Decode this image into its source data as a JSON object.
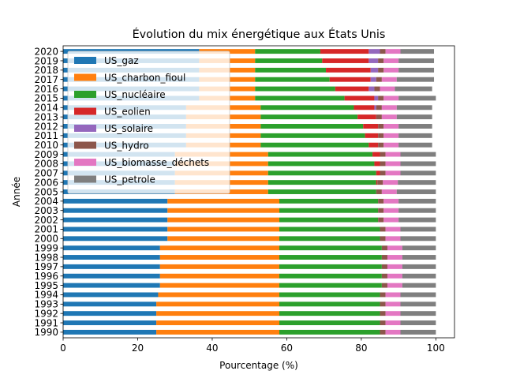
{
  "chart_data": {
    "type": "bar",
    "orientation": "horizontal",
    "stacked": true,
    "title": "Évolution du mix énergétique aux États Unis",
    "xlabel": "Pourcentage (%)",
    "ylabel": "Année",
    "xlim": [
      0,
      105
    ],
    "xticks": [
      0,
      20,
      40,
      60,
      80,
      100
    ],
    "legend_position": "upper-left",
    "grid": false,
    "categories": [
      "1990",
      "1991",
      "1992",
      "1993",
      "1994",
      "1995",
      "1996",
      "1997",
      "1998",
      "1999",
      "2000",
      "2001",
      "2002",
      "2003",
      "2004",
      "2005",
      "2006",
      "2007",
      "2008",
      "2009",
      "2010",
      "2011",
      "2012",
      "2013",
      "2014",
      "2015",
      "2016",
      "2017",
      "2018",
      "2019",
      "2020"
    ],
    "series": [
      {
        "name": "US_gaz",
        "color": "#1f77b4",
        "values": [
          25,
          25,
          25,
          25,
          25.5,
          26,
          26,
          26,
          26,
          26,
          28,
          28,
          28,
          28,
          28,
          30,
          30,
          30,
          30,
          30,
          33,
          33,
          33,
          33,
          33,
          36.5,
          36.5,
          36.5,
          36.5,
          36.5,
          36.5
        ]
      },
      {
        "name": "US_charbon_fioul",
        "color": "#ff7f0e",
        "values": [
          33,
          33,
          33,
          33,
          32.5,
          32,
          32,
          32,
          32,
          32,
          30,
          30,
          30,
          30,
          30,
          25,
          25,
          25,
          25,
          25,
          20,
          20,
          20,
          20,
          20,
          15,
          15,
          15,
          15,
          15,
          15
        ]
      },
      {
        "name": "US_nucléaire",
        "color": "#2ca02c",
        "values": [
          27,
          27,
          27,
          27,
          27,
          27.5,
          27.5,
          27.5,
          27.5,
          27.5,
          27,
          27,
          26.5,
          26.5,
          26.5,
          29,
          29,
          29,
          28.5,
          28,
          29,
          28,
          27.5,
          26,
          25,
          24,
          21.5,
          20,
          19,
          18,
          17.5
        ]
      },
      {
        "name": "US_eolien",
        "color": "#d62728",
        "values": [
          0,
          0,
          0,
          0,
          0,
          0,
          0,
          0,
          0,
          0,
          0,
          0,
          0,
          0,
          0,
          0,
          0.3,
          1,
          1.5,
          2,
          2.5,
          3.5,
          4,
          5,
          5.5,
          8,
          9,
          11,
          12,
          12.5,
          13
        ]
      },
      {
        "name": "US_solaire",
        "color": "#9467bd",
        "values": [
          0,
          0,
          0,
          0,
          0,
          0,
          0,
          0,
          0,
          0,
          0,
          0,
          0,
          0,
          0,
          0,
          0,
          0,
          0,
          0,
          0,
          0,
          0,
          0,
          0.5,
          1,
          1.5,
          1.5,
          2,
          2.5,
          3
        ]
      },
      {
        "name": "US_hydro",
        "color": "#8c564b",
        "values": [
          1.5,
          1.5,
          1.5,
          1.5,
          1.5,
          1.5,
          1.5,
          1.5,
          1.5,
          1.5,
          1.5,
          1.5,
          1.5,
          1.5,
          1.5,
          1.5,
          1.5,
          1.5,
          1.5,
          1.5,
          1.5,
          1.5,
          1.5,
          1.5,
          1.5,
          1.5,
          1.5,
          1.5,
          1.5,
          1.5,
          1.5
        ]
      },
      {
        "name": "US_biomasse_déchets",
        "color": "#e377c2",
        "values": [
          4,
          4,
          4,
          4,
          4,
          4,
          4,
          4,
          4,
          4,
          4,
          4,
          4,
          4,
          4,
          4,
          4,
          4,
          4,
          4,
          4,
          4,
          4,
          4,
          4,
          4,
          4,
          4,
          4,
          4,
          4
        ]
      },
      {
        "name": "US_petrole",
        "color": "#7f7f7f",
        "values": [
          9.5,
          9.5,
          9.5,
          9.5,
          9.5,
          9,
          9,
          9,
          9,
          9,
          9.5,
          9.5,
          10,
          10,
          10,
          10.5,
          10.2,
          9.5,
          9.5,
          9.5,
          9,
          9,
          9,
          9.5,
          9.5,
          10,
          10,
          10,
          9.5,
          9.5,
          9
        ]
      }
    ]
  }
}
